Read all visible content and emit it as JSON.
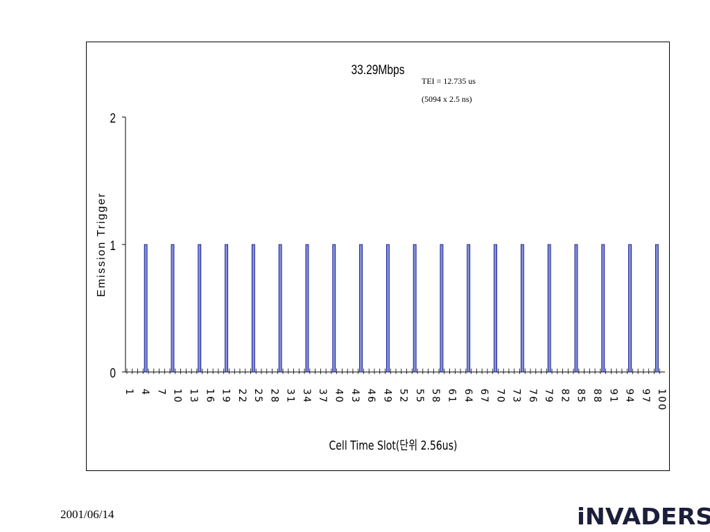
{
  "chart_data": {
    "type": "bar",
    "title": "33.29Mbps",
    "annotations": [
      "TEI = 12.735 us",
      "(5094 x 2.5 ns)"
    ],
    "xlabel": "Cell Time Slot(단위 2.56us)",
    "ylabel": "Emission Trigger",
    "ylim": [
      0,
      2
    ],
    "yticks": [
      0,
      1,
      2
    ],
    "x_range": [
      1,
      100
    ],
    "x_tick_labels": [
      "1",
      "4",
      "7",
      "10",
      "13",
      "16",
      "19",
      "22",
      "25",
      "28",
      "31",
      "34",
      "37",
      "40",
      "43",
      "46",
      "49",
      "52",
      "55",
      "58",
      "61",
      "64",
      "67",
      "70",
      "73",
      "76",
      "79",
      "82",
      "85",
      "88",
      "91",
      "94",
      "97",
      "100"
    ],
    "series": [
      {
        "x": [
          4,
          9,
          14,
          19,
          24,
          29,
          34,
          39,
          44,
          49,
          54,
          59,
          64,
          69,
          74,
          79,
          84,
          89,
          94,
          99
        ],
        "values": [
          1,
          1,
          1,
          1,
          1,
          1,
          1,
          1,
          1,
          1,
          1,
          1,
          1,
          1,
          1,
          1,
          1,
          1,
          1,
          1
        ]
      }
    ],
    "bar_color": "#8090d8",
    "bar_edge_color": "#000080",
    "grid": false
  },
  "footer": {
    "date": "2001/06/14",
    "logo_text": "iNVADERS"
  }
}
